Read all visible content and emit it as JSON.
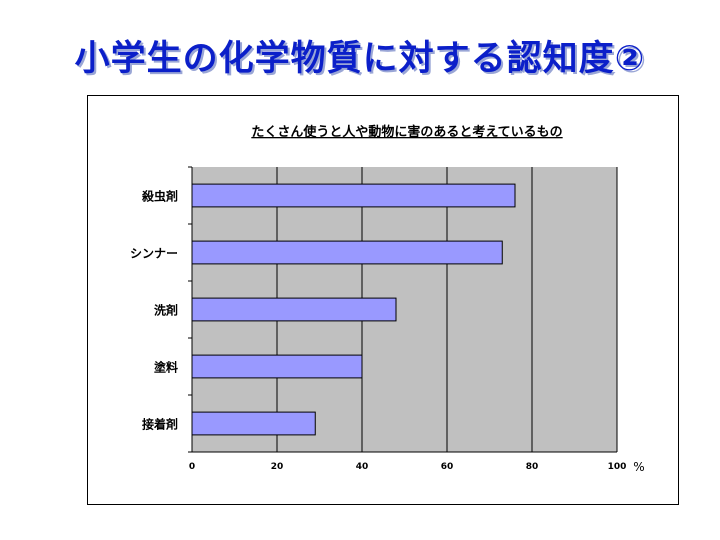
{
  "slide": {
    "title": "小学生の化学物質に対する認知度②"
  },
  "chart_data": {
    "type": "bar",
    "orientation": "horizontal",
    "title": "たくさん使うと人や動物に害のあると考えているもの",
    "categories": [
      "殺虫剤",
      "シンナー",
      "洗剤",
      "塗料",
      "接着剤"
    ],
    "values": [
      76,
      73,
      48,
      40,
      29
    ],
    "xlim": [
      0,
      100
    ],
    "xticks": [
      "0",
      "20",
      "40",
      "60",
      "80",
      "100"
    ],
    "x_unit": "%",
    "grid": true,
    "legend": "none",
    "colors": {
      "bar": "#9999ff",
      "plot_bg": "#c0c0c0"
    }
  }
}
